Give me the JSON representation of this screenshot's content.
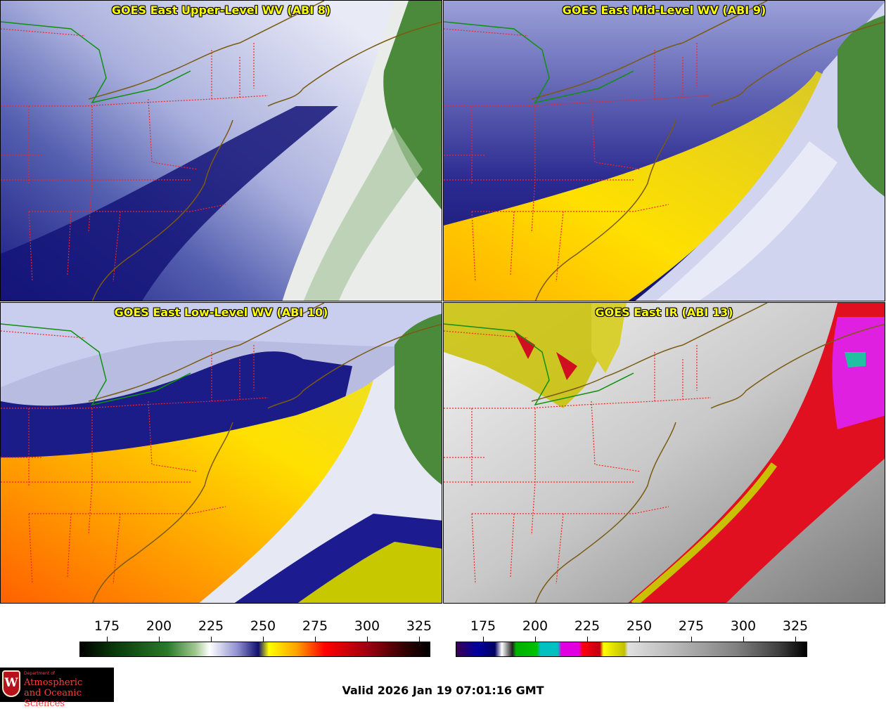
{
  "panels": [
    {
      "title": "GOES East Upper-Level WV (ABI 8)"
    },
    {
      "title": "GOES East Mid-Level WV (ABI 9)"
    },
    {
      "title": "GOES East Low-Level WV (ABI 10)"
    },
    {
      "title": "GOES East IR (ABI 13)"
    }
  ],
  "colorbars": {
    "wv": {
      "ticks": [
        "175",
        "200",
        "225",
        "250",
        "275",
        "300",
        "325"
      ]
    },
    "ir": {
      "ticks": [
        "175",
        "200",
        "225",
        "250",
        "275",
        "300",
        "325"
      ]
    }
  },
  "footer": {
    "valid_time": "Valid 2026 Jan 19 07:01:16 GMT"
  },
  "logo": {
    "dept": "Department of",
    "line1": "Atmospheric",
    "line2": "and Oceanic Sciences",
    "seal": "W"
  },
  "colors": {
    "state_borders": "#ff2020",
    "coastline": "#7a5a10",
    "green_line": "#109010"
  }
}
